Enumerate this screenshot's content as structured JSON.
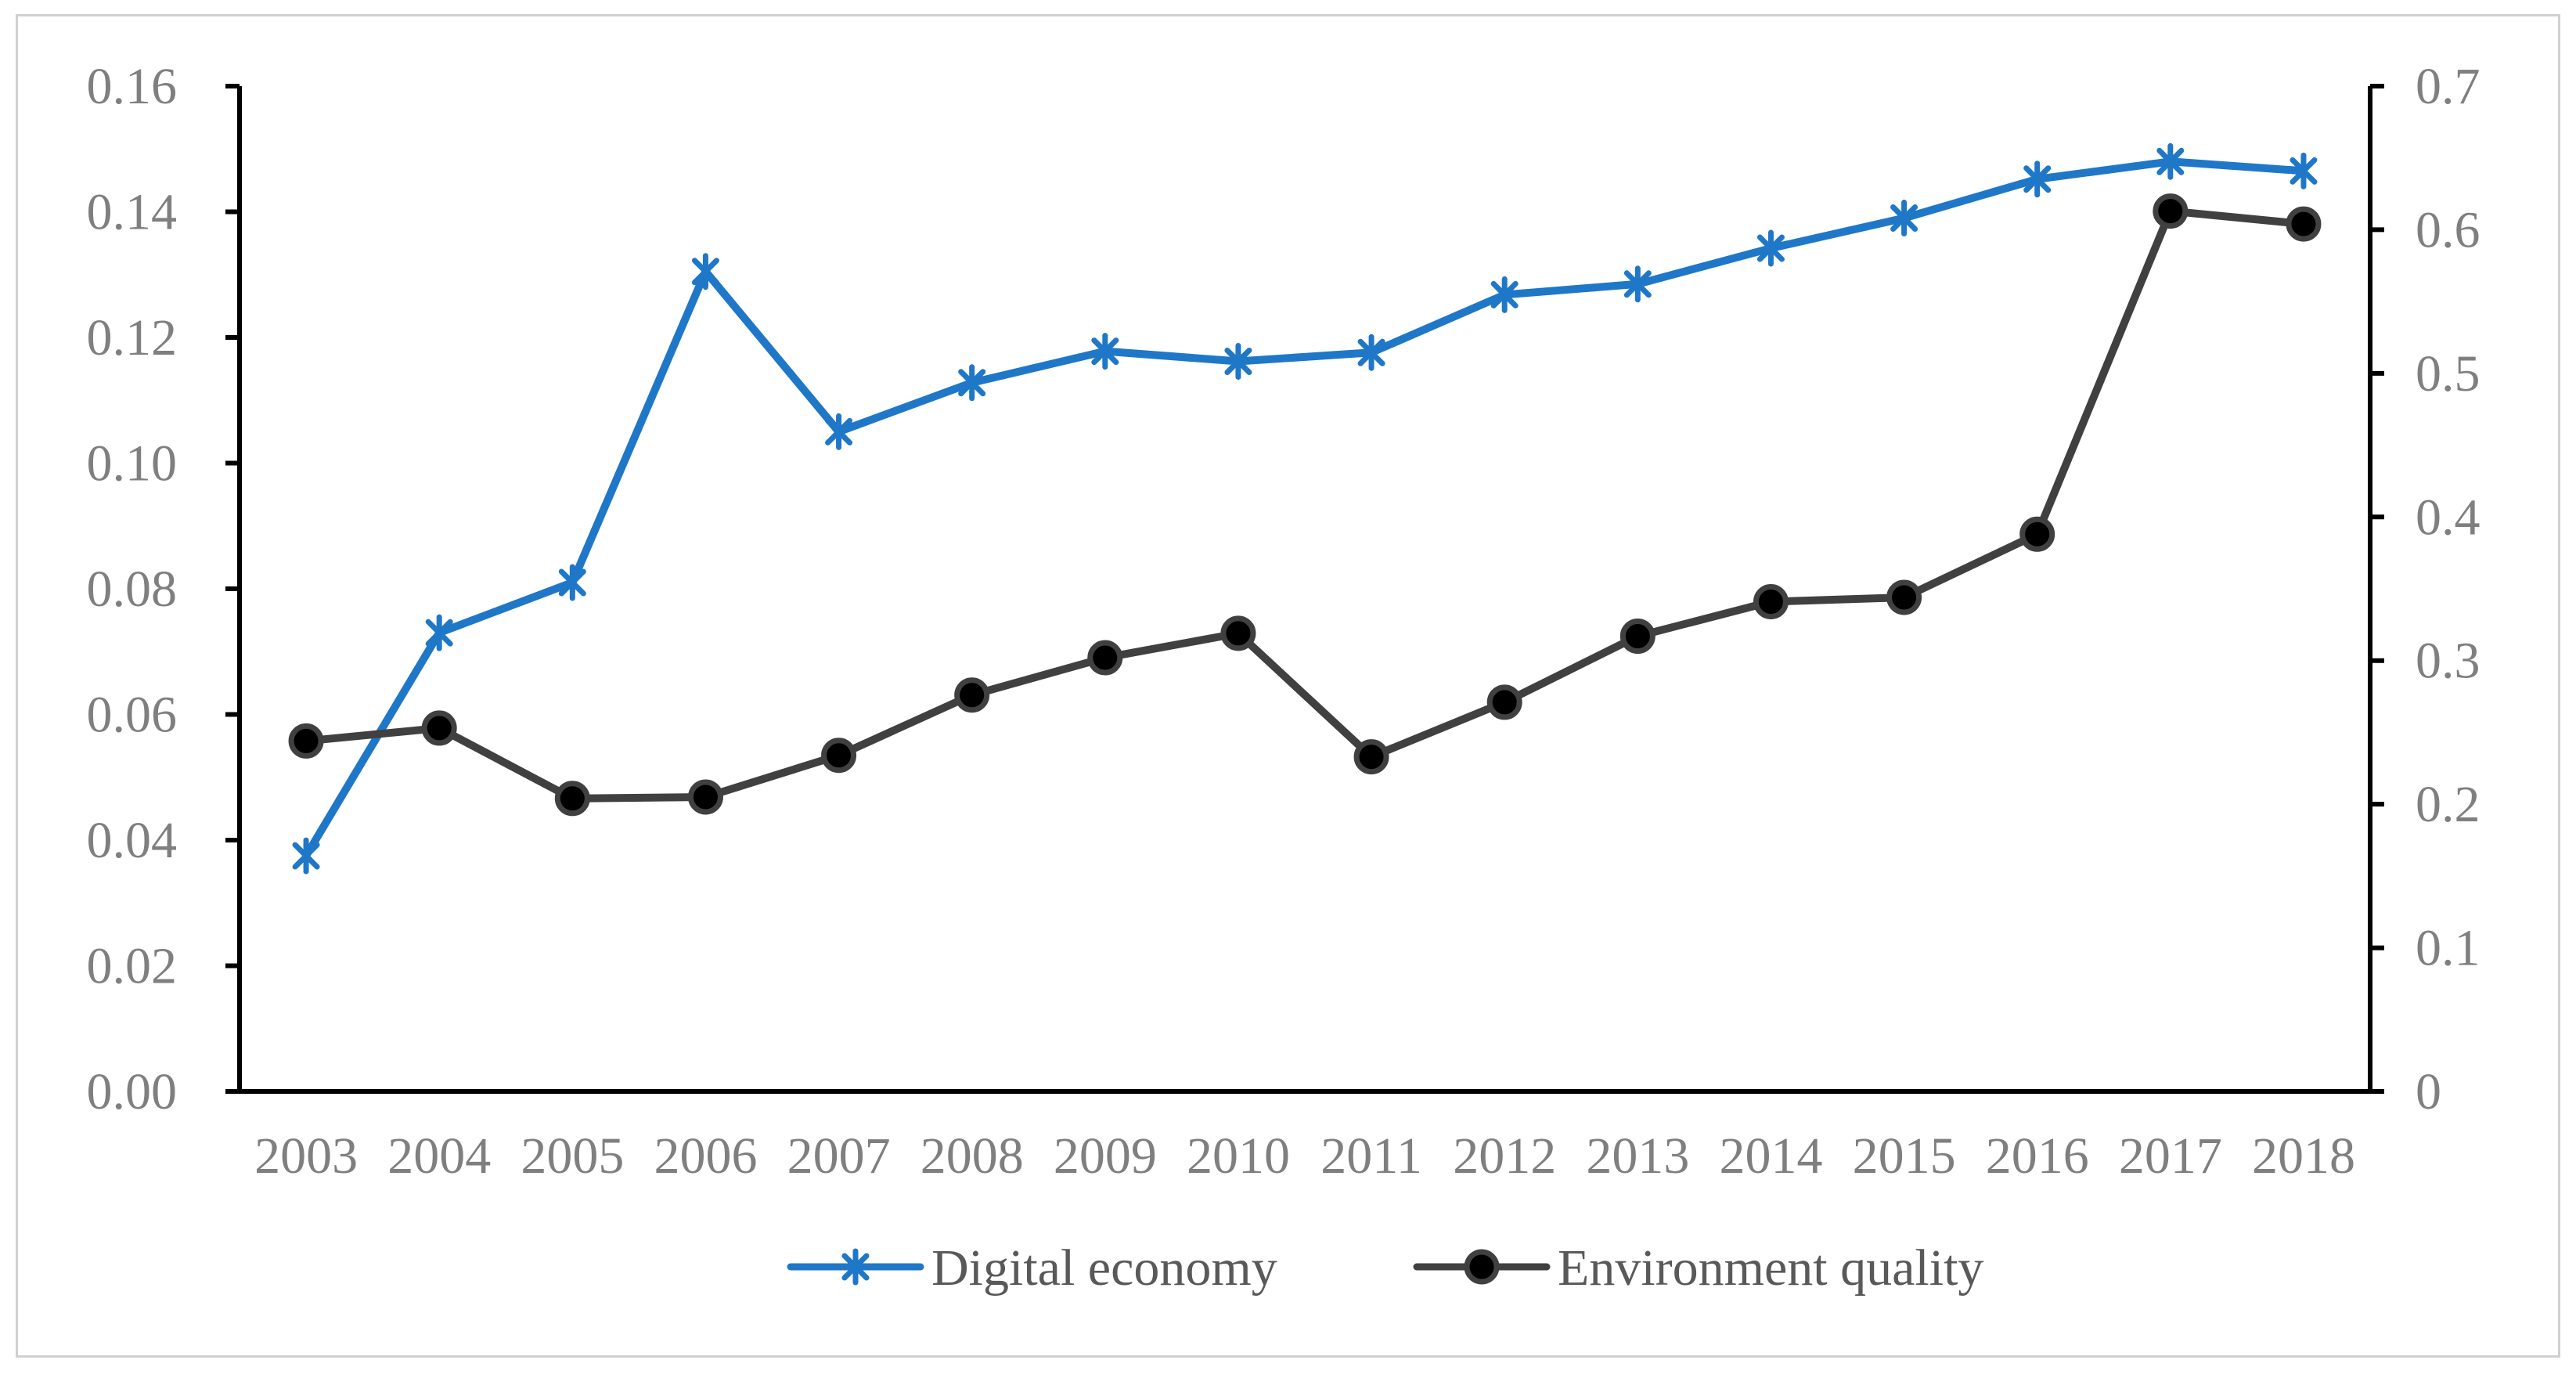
{
  "chart_data": {
    "type": "line",
    "title": "",
    "xlabel": "",
    "ylabel": "",
    "y2label": "",
    "categories": [
      "2003",
      "2004",
      "2005",
      "2006",
      "2007",
      "2008",
      "2009",
      "2010",
      "2011",
      "2012",
      "2013",
      "2014",
      "2015",
      "2016",
      "2017",
      "2018"
    ],
    "ylim": [
      0,
      0.16
    ],
    "y2lim": [
      0,
      0.7
    ],
    "y_ticks": [
      "0.00",
      "0.02",
      "0.04",
      "0.06",
      "0.08",
      "0.10",
      "0.12",
      "0.14",
      "0.16"
    ],
    "y2_ticks": [
      "0",
      "0.1",
      "0.2",
      "0.3",
      "0.4",
      "0.5",
      "0.6",
      "0.7"
    ],
    "legend_position": "bottom",
    "grid": false,
    "series": [
      {
        "name": "Digital economy",
        "axis": "left",
        "marker": "asterisk",
        "color": "#1f77c8",
        "values": [
          0.0375,
          0.073,
          0.081,
          0.1305,
          0.105,
          0.1128,
          0.1178,
          0.1162,
          0.1176,
          0.1268,
          0.1285,
          0.1342,
          0.139,
          0.1452,
          0.148,
          0.1465
        ]
      },
      {
        "name": "Environment quality",
        "axis": "right",
        "marker": "circle",
        "color": "#404040",
        "values": [
          0.244,
          0.253,
          0.204,
          0.205,
          0.234,
          0.276,
          0.302,
          0.319,
          0.233,
          0.271,
          0.317,
          0.341,
          0.344,
          0.388,
          0.613,
          0.604
        ]
      }
    ]
  }
}
